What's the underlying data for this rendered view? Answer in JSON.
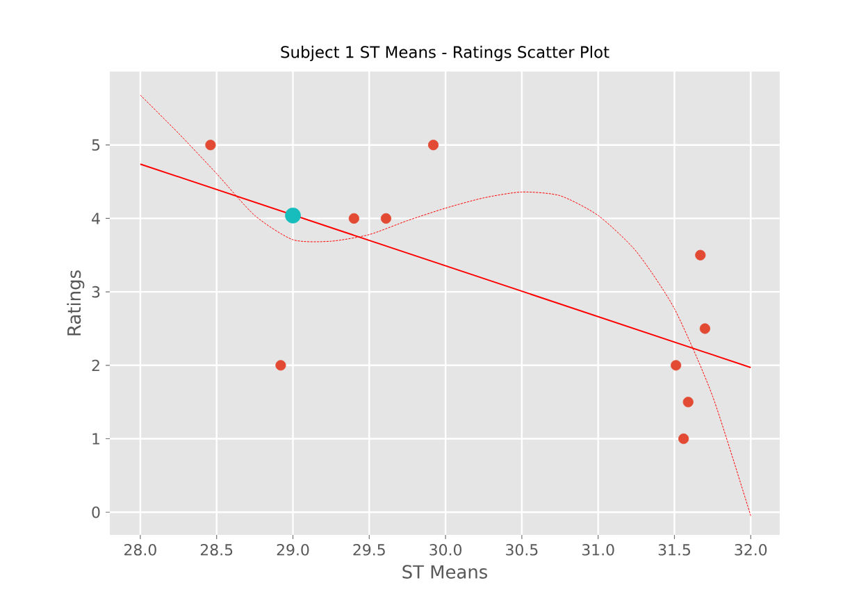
{
  "chart_data": {
    "type": "scatter",
    "title": "Subject 1 ST Means - Ratings Scatter Plot",
    "xlabel": "ST Means",
    "ylabel": "Ratings",
    "xlim": [
      27.8,
      32.19
    ],
    "ylim": [
      -0.31,
      6.0
    ],
    "xticks": [
      {
        "value": 28,
        "label": "28.0"
      },
      {
        "value": 28.5,
        "label": "28.5"
      },
      {
        "value": 29,
        "label": "29.0"
      },
      {
        "value": 29.5,
        "label": "29.5"
      },
      {
        "value": 30,
        "label": "30.0"
      },
      {
        "value": 30.5,
        "label": "30.5"
      },
      {
        "value": 31,
        "label": "31.0"
      },
      {
        "value": 31.5,
        "label": "31.5"
      },
      {
        "value": 32,
        "label": "32.0"
      }
    ],
    "yticks": [
      0,
      1,
      2,
      3,
      4,
      5
    ],
    "grid": true,
    "series": [
      {
        "type": "line",
        "color": "#ff0000",
        "marker": "none",
        "line_style": "dotted",
        "x": [
          28.0,
          28.25,
          28.5,
          28.75,
          29.0,
          29.25,
          29.5,
          29.75,
          30.0,
          30.25,
          30.5,
          30.75,
          31.0,
          31.25,
          31.5,
          31.75,
          32.0
        ],
        "values": [
          5.68,
          5.16,
          4.61,
          4.04,
          3.71,
          3.69,
          3.78,
          3.97,
          4.14,
          4.28,
          4.36,
          4.31,
          4.04,
          3.55,
          2.77,
          1.58,
          -0.05
        ]
      },
      {
        "type": "line",
        "color": "#ff0000",
        "marker": "none",
        "line_style": "solid",
        "x": [
          28.0,
          32.0
        ],
        "values": [
          4.74,
          1.97
        ]
      },
      {
        "color": "#e24a33",
        "x": [
          28.46,
          28.92,
          29.4,
          29.61,
          29.92,
          31.67,
          31.7,
          31.51,
          31.59,
          31.56
        ],
        "values": [
          5,
          2,
          4,
          4,
          5,
          3.5,
          2.5,
          2,
          1.5,
          1
        ]
      },
      {
        "color": "#17bcbc",
        "x": [
          29.0
        ],
        "values": [
          4.04
        ]
      }
    ]
  }
}
